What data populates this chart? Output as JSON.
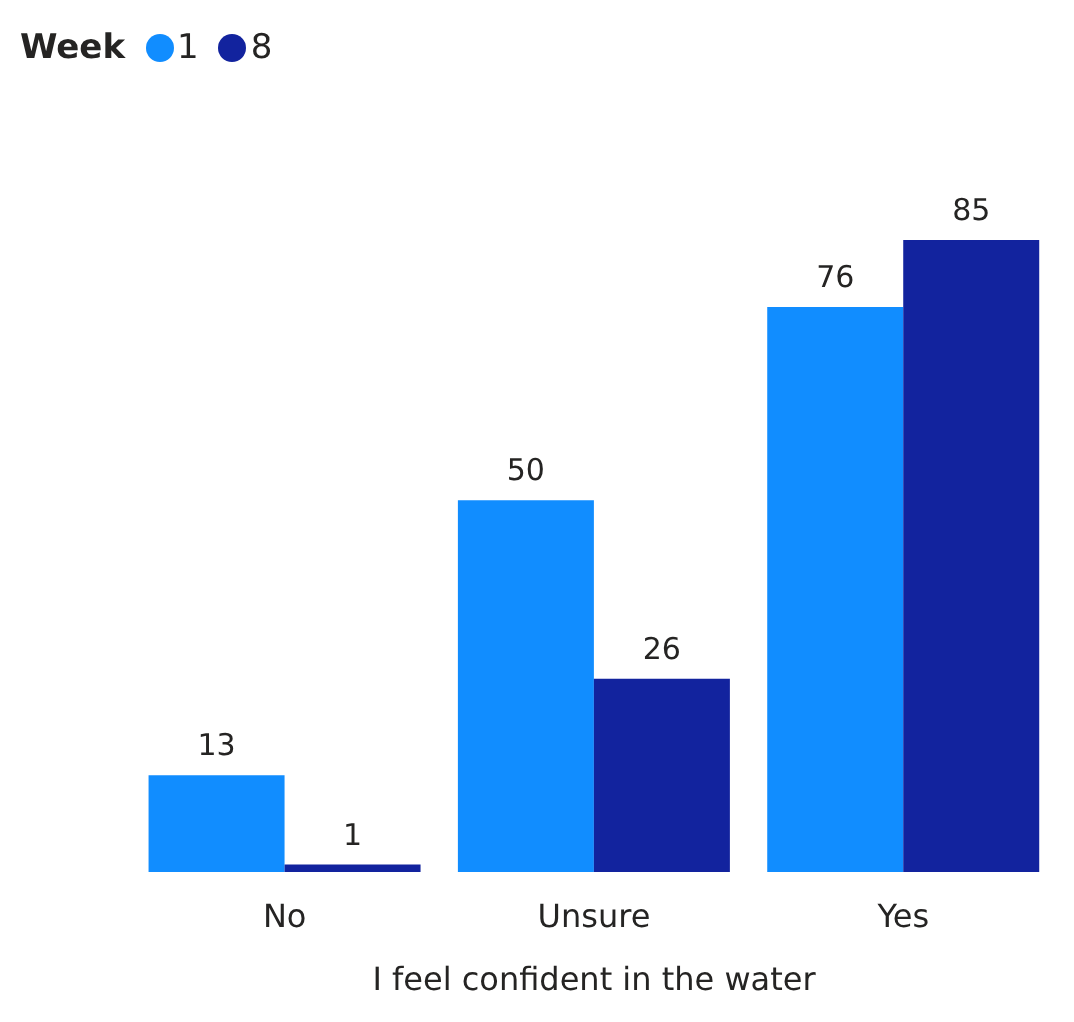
{
  "chart_data": {
    "type": "bar",
    "xlabel": "I feel confident in the water",
    "legend_title": "Week",
    "categories": [
      "No",
      "Unsure",
      "Yes"
    ],
    "series": [
      {
        "name": "1",
        "color": "#118dff",
        "values": [
          13,
          50,
          76
        ]
      },
      {
        "name": "8",
        "color": "#12239e",
        "values": [
          1,
          26,
          85
        ]
      }
    ],
    "data_labels": true,
    "legend": "top left",
    "grid": false
  }
}
